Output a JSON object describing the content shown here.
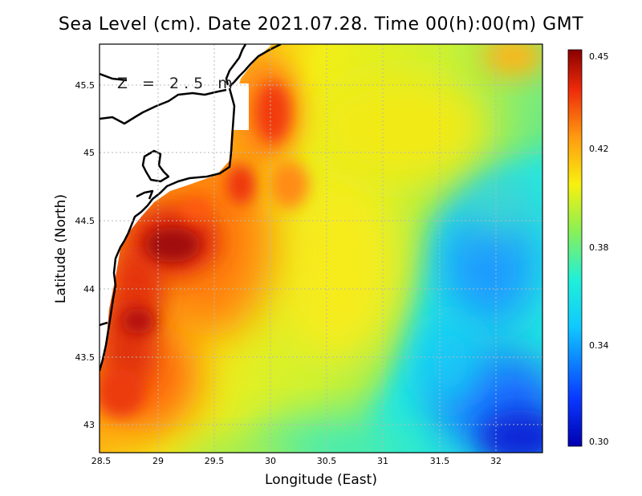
{
  "title": "Sea Level (cm). Date 2021.07.28. Time 00(h):00(m) GMT",
  "depth_label": "Z = 2.5 m",
  "xlabel": "Longitude (East)",
  "ylabel": "Latitude (North)",
  "x_ticks": [
    "28.5",
    "29",
    "29.5",
    "30",
    "30.5",
    "31",
    "31.5",
    "32"
  ],
  "y_ticks": [
    "43",
    "43.5",
    "44",
    "44.5",
    "45",
    "45.5"
  ],
  "colorbar_ticks": [
    "0.45",
    "0.42",
    "0.38",
    "0.34",
    "0.30"
  ],
  "colors": {
    "ocean_red": "#cc1a0a",
    "ocean_orange": "#ff7a10",
    "ocean_yellow": "#f2ec14",
    "ocean_cyan": "#14e6f0",
    "ocean_blue": "#1040ee",
    "land": "#ffffff",
    "coast": "#000000"
  },
  "chart_data": {
    "type": "heatmap",
    "variable": "Sea Level (cm)",
    "title": "Sea Level (cm). Date 2021.07.28. Time 00(h):00(m) GMT",
    "xlabel": "Longitude (East)",
    "ylabel": "Latitude (North)",
    "xlim": [
      28.5,
      32.4
    ],
    "ylim": [
      42.8,
      45.8
    ],
    "x_ticks": [
      28.5,
      29,
      29.5,
      30,
      30.5,
      31,
      31.5,
      32
    ],
    "y_ticks": [
      43,
      43.5,
      44,
      44.5,
      45,
      45.5
    ],
    "colorbar": {
      "min": 0.3,
      "max": 0.45,
      "ticks": [
        0.45,
        0.42,
        0.38,
        0.34,
        0.3
      ]
    },
    "features": [
      {
        "name": "coastal maximum",
        "lon": 29.1,
        "lat": 44.3,
        "value": 0.45
      },
      {
        "name": "southwest coastal high",
        "lon": 28.8,
        "lat": 43.8,
        "value": 0.44
      },
      {
        "name": "eastern low",
        "lon": 32.2,
        "lat": 42.9,
        "value": 0.31
      },
      {
        "name": "central east low",
        "lon": 31.9,
        "lat": 44.2,
        "value": 0.34
      }
    ]
  }
}
